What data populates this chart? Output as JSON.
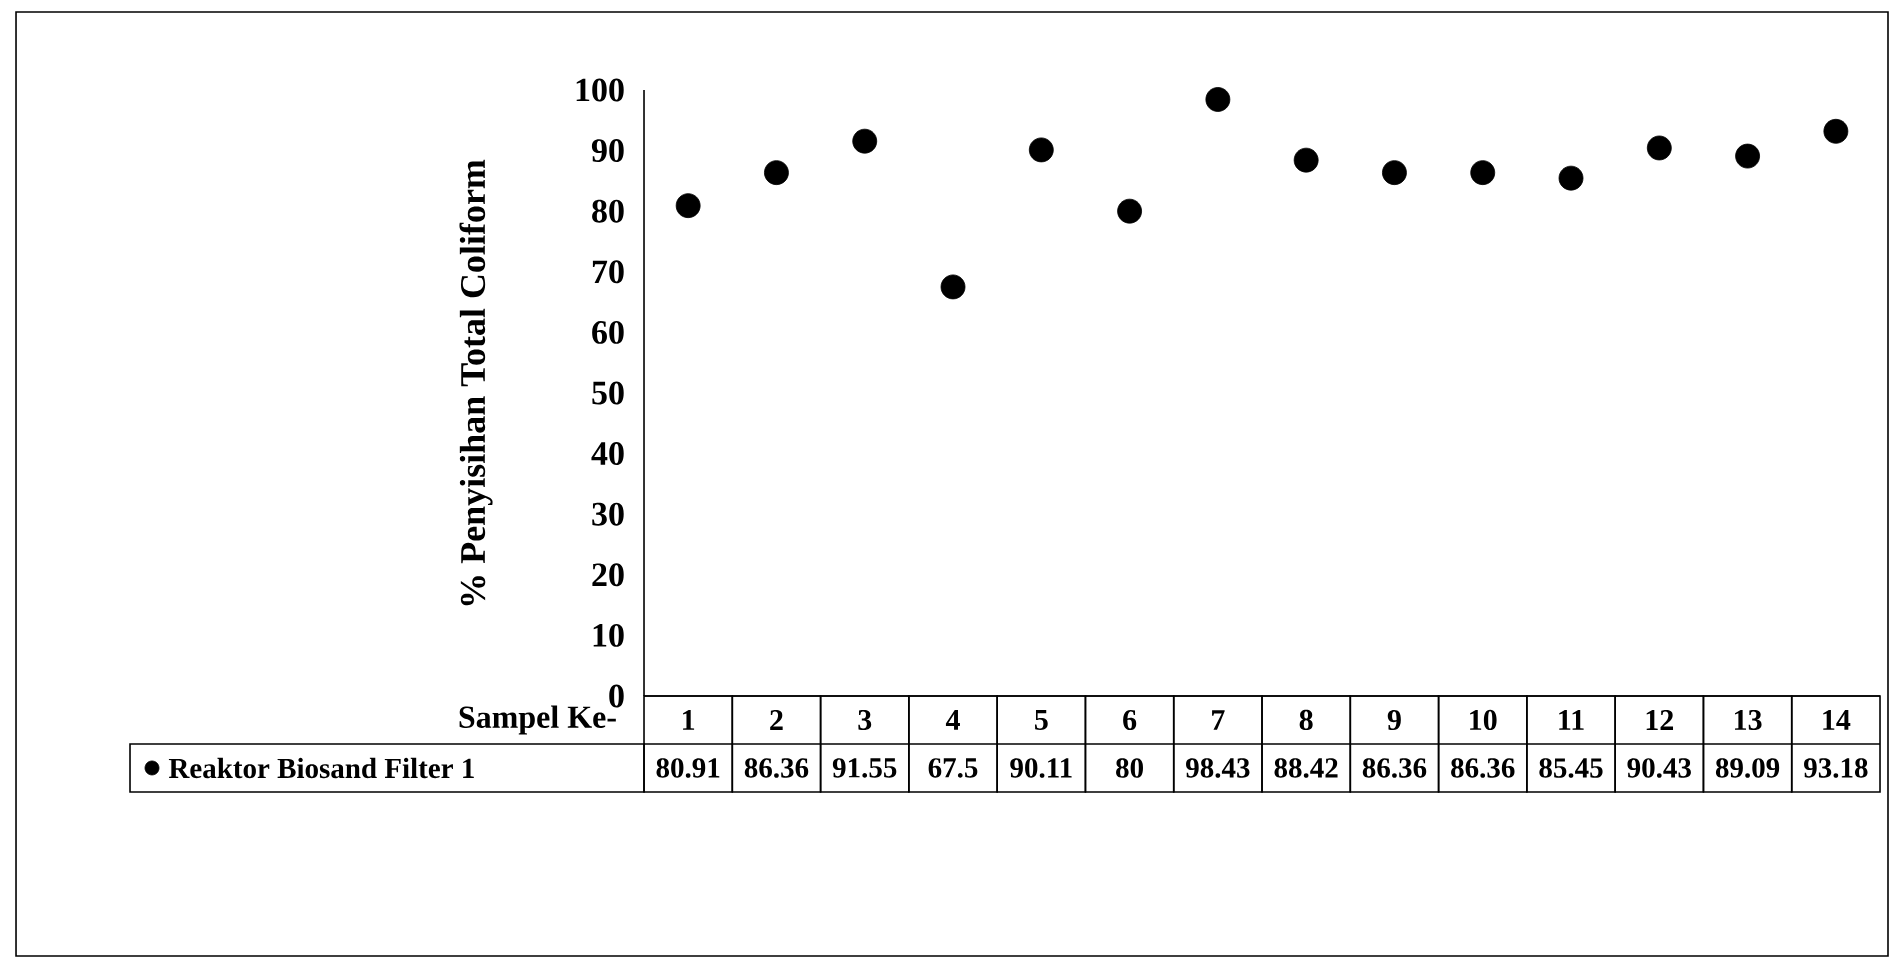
{
  "chart_data": {
    "type": "scatter",
    "xlabel": "Sampel Ke-",
    "ylabel": "% Penyisihan Total Coliform",
    "categories": [
      "1",
      "2",
      "3",
      "4",
      "5",
      "6",
      "7",
      "8",
      "9",
      "10",
      "11",
      "12",
      "13",
      "14"
    ],
    "series": [
      {
        "name": "Reaktor Biosand Filter 1",
        "color": "#000000",
        "values": [
          80.91,
          86.36,
          91.55,
          67.5,
          90.11,
          80,
          98.43,
          88.42,
          86.36,
          86.36,
          85.45,
          90.43,
          89.09,
          93.18
        ]
      }
    ],
    "ylim": [
      0,
      100
    ],
    "yticks": [
      0,
      10,
      20,
      30,
      40,
      50,
      60,
      70,
      80,
      90,
      100
    ],
    "marker": "circle",
    "data_labels": true,
    "legend": "bottom"
  }
}
